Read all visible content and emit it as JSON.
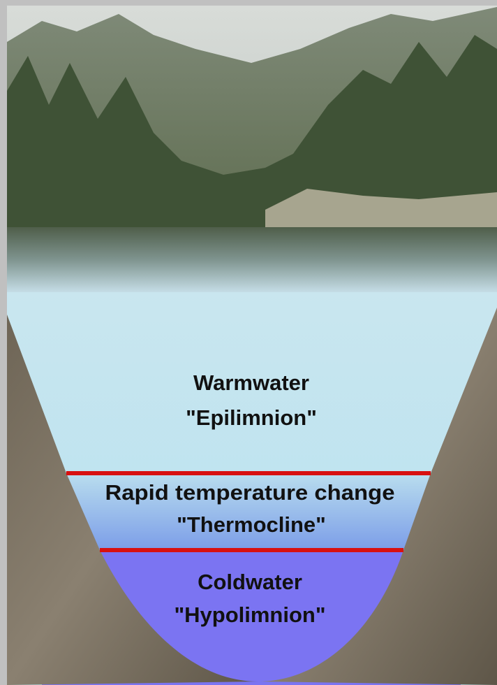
{
  "layers": [
    {
      "name": "Warmwater",
      "term": "\"Epilimnion\""
    },
    {
      "name": "Rapid temperature change",
      "term": "\"Thermocline\""
    },
    {
      "name": "Coldwater",
      "term": "\"Hypolimnion\""
    }
  ]
}
